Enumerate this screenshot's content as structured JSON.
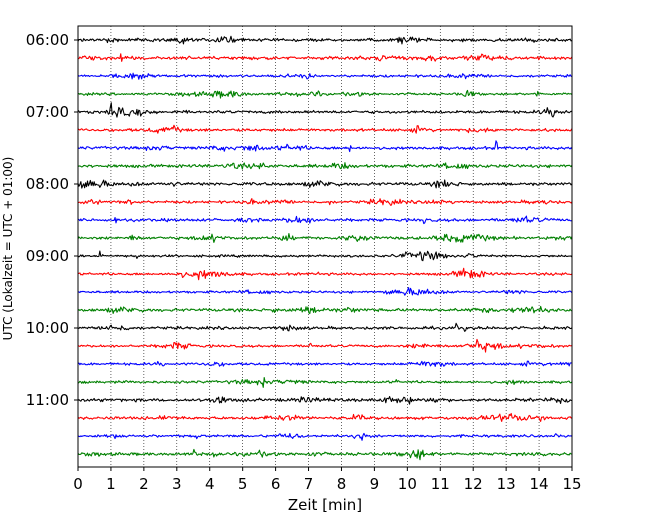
{
  "chart_data": {
    "type": "line",
    "xlabel": "Zeit  [min]",
    "ylabel": "UTC (Lokalzeit = UTC + 01:00)",
    "xlim": [
      0,
      15
    ],
    "x_ticks": [
      0,
      1,
      2,
      3,
      4,
      5,
      6,
      7,
      8,
      9,
      10,
      11,
      12,
      13,
      14,
      15
    ],
    "x_tick_labels": [
      "0",
      "1",
      "2",
      "3",
      "4",
      "5",
      "6",
      "7",
      "8",
      "9",
      "10",
      "11",
      "12",
      "13",
      "14",
      "15"
    ],
    "y_ticks": [
      "06:00",
      "07:00",
      "08:00",
      "09:00",
      "10:00",
      "11:00"
    ],
    "vertical_grid": "dotted",
    "trace_minutes": 15,
    "trace_colors": [
      "#000000",
      "#ff0000",
      "#0000ff",
      "#008000"
    ],
    "traces": [
      {
        "start": "06:00",
        "color": "#000000"
      },
      {
        "start": "06:15",
        "color": "#ff0000"
      },
      {
        "start": "06:30",
        "color": "#0000ff"
      },
      {
        "start": "06:45",
        "color": "#008000"
      },
      {
        "start": "07:00",
        "color": "#000000"
      },
      {
        "start": "07:15",
        "color": "#ff0000"
      },
      {
        "start": "07:30",
        "color": "#0000ff"
      },
      {
        "start": "07:45",
        "color": "#008000"
      },
      {
        "start": "08:00",
        "color": "#000000"
      },
      {
        "start": "08:15",
        "color": "#ff0000"
      },
      {
        "start": "08:30",
        "color": "#0000ff"
      },
      {
        "start": "08:45",
        "color": "#008000"
      },
      {
        "start": "09:00",
        "color": "#000000"
      },
      {
        "start": "09:15",
        "color": "#ff0000"
      },
      {
        "start": "09:30",
        "color": "#0000ff"
      },
      {
        "start": "09:45",
        "color": "#008000"
      },
      {
        "start": "10:00",
        "color": "#000000"
      },
      {
        "start": "10:15",
        "color": "#ff0000"
      },
      {
        "start": "10:30",
        "color": "#0000ff"
      },
      {
        "start": "10:45",
        "color": "#008000"
      },
      {
        "start": "11:00",
        "color": "#000000"
      },
      {
        "start": "11:15",
        "color": "#ff0000"
      },
      {
        "start": "11:30",
        "color": "#0000ff"
      },
      {
        "start": "11:45",
        "color": "#008000"
      }
    ]
  }
}
